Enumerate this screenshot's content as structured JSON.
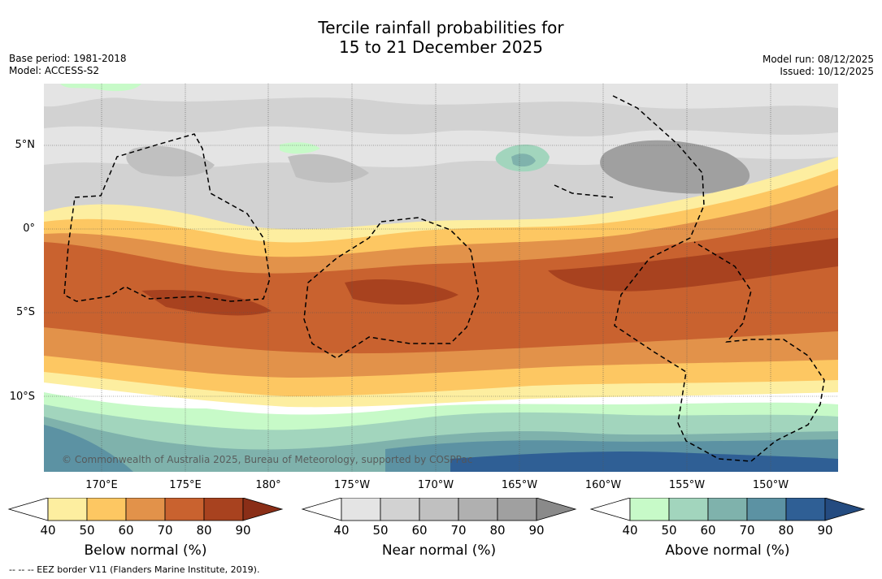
{
  "title_line1": "Tercile rainfall probabilities for",
  "title_line2": "15 to 21 December 2025",
  "base_period": "Base period: 1981-2018",
  "model": "Model: ACCESS-S2",
  "model_run": "Model run: 08/12/2025",
  "issued": "Issued: 10/12/2025",
  "credit": "© Commonwealth of Australia 2025, Bureau of Meteorology, supported by COSPPac",
  "lat_labels": [
    "5°N",
    "0°",
    "5°S",
    "10°S"
  ],
  "lon_labels": [
    "170°E",
    "175°E",
    "180°",
    "175°W",
    "170°W",
    "165°W",
    "160°W",
    "155°W",
    "150°W"
  ],
  "colorbars": [
    {
      "title": "Below normal (%)",
      "ticks": [
        "40",
        "50",
        "60",
        "70",
        "80",
        "90"
      ],
      "colors": [
        "#ffffff",
        "#fdeea0",
        "#fdc762",
        "#e2924a",
        "#c9622f",
        "#a8421f",
        "#8a2e17"
      ]
    },
    {
      "title": "Near normal (%)",
      "ticks": [
        "40",
        "50",
        "60",
        "70",
        "80",
        "90"
      ],
      "colors": [
        "#ffffff",
        "#e4e4e4",
        "#d2d2d2",
        "#c0c0c0",
        "#b0b0b0",
        "#a0a0a0",
        "#8a8a8a"
      ]
    },
    {
      "title": "Above normal (%)",
      "ticks": [
        "40",
        "50",
        "60",
        "70",
        "80",
        "90"
      ],
      "colors": [
        "#ffffff",
        "#c7fac8",
        "#a2d5bd",
        "#7fb2ac",
        "#5c92a3",
        "#2f5f95",
        "#244b80"
      ]
    }
  ],
  "footnote": "--  --  -- EEZ border V11 (Flanders Marine Institute, 2019)."
}
